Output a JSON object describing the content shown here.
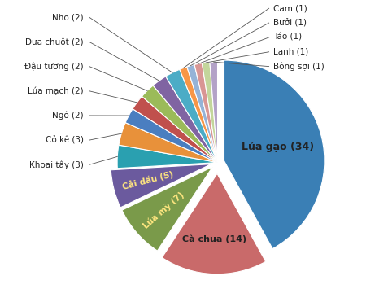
{
  "chart_data": {
    "type": "pie",
    "categories": [
      "Lúa gạo (34)",
      "Cà chua (14)",
      "Lúa mỳ (7)",
      "Cải dầu (5)",
      "Khoai tây (3)",
      "Cỏ kê (3)",
      "Ngô (2)",
      "Lúa mạch (2)",
      "Đậu tương (2)",
      "Dưa chuột (2)",
      "Nho (2)",
      "Cam (1)",
      "Bưởi (1)",
      "Táo (1)",
      "Lanh (1)",
      "Bông sợi (1)"
    ],
    "values": [
      34,
      14,
      7,
      5,
      3,
      3,
      2,
      2,
      2,
      2,
      2,
      1,
      1,
      1,
      1,
      1
    ],
    "colors": [
      "#3a7fb5",
      "#c96a6a",
      "#7a9a4a",
      "#6b5a9e",
      "#2aa0b0",
      "#e8913a",
      "#4a7ec0",
      "#c0504d",
      "#9bbb59",
      "#8064a2",
      "#4bacc6",
      "#f79646",
      "#95b3d7",
      "#d99694",
      "#c3d69b",
      "#b3a2c7"
    ]
  }
}
